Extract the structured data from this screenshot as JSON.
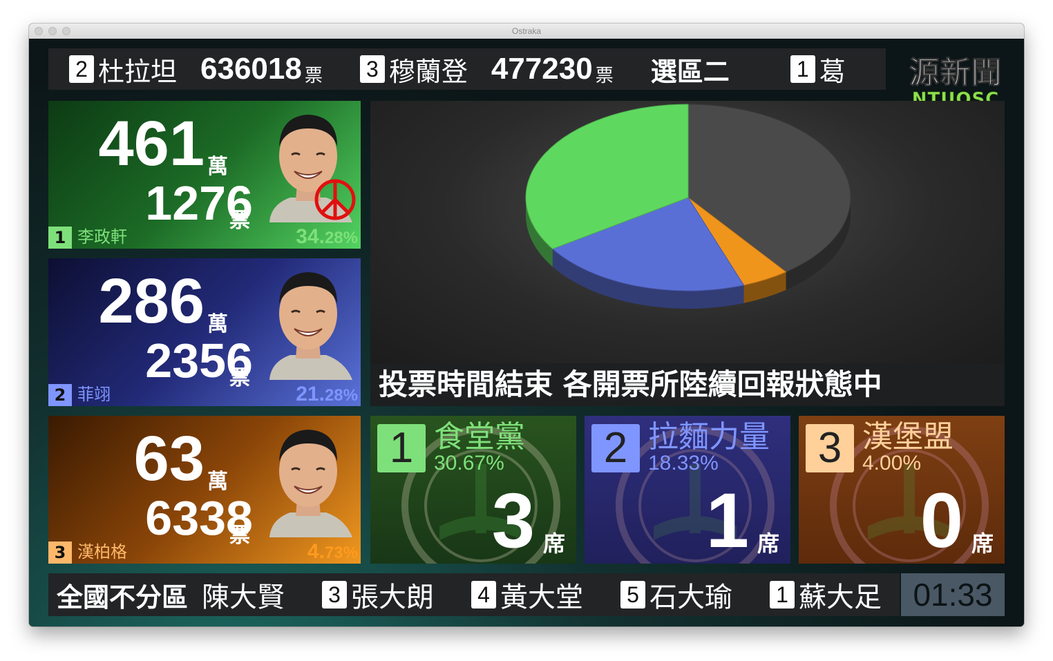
{
  "window": {
    "title": "Ostraka"
  },
  "ticker": {
    "items": [
      {
        "num": "2",
        "name": "杜拉坦",
        "votes": "636018",
        "unit": "票"
      },
      {
        "num": "3",
        "name": "穆蘭登",
        "votes": "477230",
        "unit": "票"
      }
    ],
    "region": "選區二",
    "next": {
      "num": "1",
      "name": "葛"
    }
  },
  "logo": {
    "main": "源新聞",
    "sub": "NTUOSC"
  },
  "candidates": [
    {
      "wan": "461",
      "wan_unit": "萬",
      "piao": "1276",
      "piao_unit": "票",
      "num": "1",
      "name": "李政軒",
      "pct_int": "34.",
      "pct_dec": "28%",
      "color": "#6de06a",
      "elected_mark": "peace-symbol-icon"
    },
    {
      "wan": "286",
      "wan_unit": "萬",
      "piao": "2356",
      "piao_unit": "票",
      "num": "2",
      "name": "菲翊",
      "pct_int": "21.",
      "pct_dec": "28%",
      "color": "#6f8aff"
    },
    {
      "wan": "63",
      "wan_unit": "萬",
      "piao": "6338",
      "piao_unit": "票",
      "num": "3",
      "name": "漢柏格",
      "pct_int": "4.",
      "pct_dec": "73%",
      "color": "#ff9a1e"
    }
  ],
  "headline": "投票時間結束 各開票所陸續回報狀態中",
  "parties": [
    {
      "num": "1",
      "name": "食堂黨",
      "pct": "30.67%",
      "seats": "3",
      "seat_unit": "席",
      "color": "#7ee07a"
    },
    {
      "num": "2",
      "name": "拉麵力量",
      "pct": "18.33%",
      "seats": "1",
      "seat_unit": "席",
      "color": "#7f95ff"
    },
    {
      "num": "3",
      "name": "漢堡盟",
      "pct": "4.00%",
      "seats": "0",
      "seat_unit": "席",
      "color": "#ffd09a"
    }
  ],
  "bottom": {
    "title": "全國不分區",
    "first_name": "陳大賢",
    "items": [
      {
        "num": "3",
        "name": "張大朗"
      },
      {
        "num": "4",
        "name": "黃大堂"
      },
      {
        "num": "5",
        "name": "石大瑜"
      },
      {
        "num": "1",
        "name": "蘇大足"
      }
    ]
  },
  "clock": "01:33",
  "chart_data": {
    "type": "pie",
    "title": "",
    "series": [
      {
        "values": [
          34.28,
          21.28,
          4.73,
          39.71
        ]
      }
    ],
    "colors": [
      "#5fd860",
      "#5a6fd6",
      "#f0951c",
      "#4a4a4a"
    ],
    "style": "3d"
  }
}
